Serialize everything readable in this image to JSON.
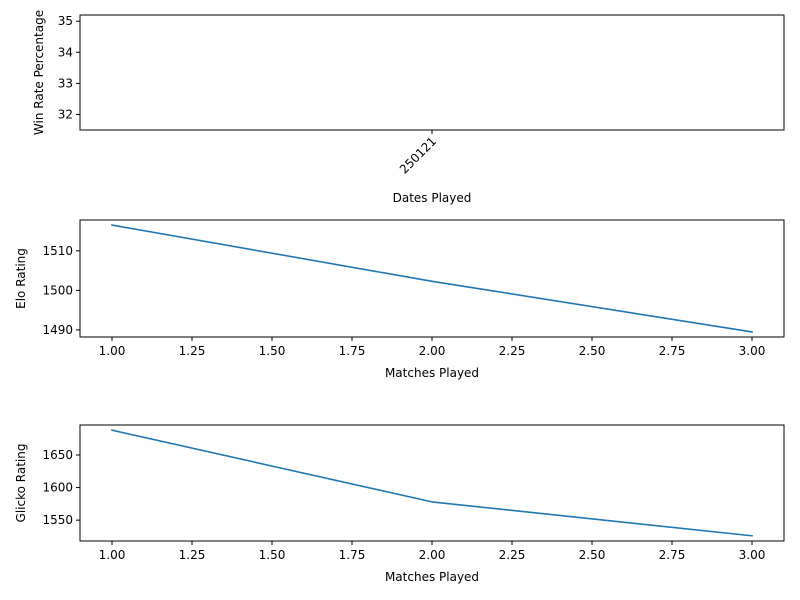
{
  "chart_data": [
    {
      "type": "line",
      "xlabel": "Dates Played",
      "ylabel": "Win Rate Percentage",
      "x_categories": [
        "250121"
      ],
      "series": [],
      "ylim": [
        31.5,
        35.2
      ],
      "yticks": [
        32,
        33,
        34,
        35
      ],
      "x_tick_rotation_deg": 45,
      "grid": false
    },
    {
      "type": "line",
      "xlabel": "Matches Played",
      "ylabel": "Elo Rating",
      "series": [
        {
          "x": [
            1,
            2,
            3
          ],
          "y": [
            1516.5,
            1502.3,
            1489.5
          ],
          "color": "#1f77b4"
        }
      ],
      "xlim": [
        0.9,
        3.1
      ],
      "ylim": [
        1488.2,
        1517.8
      ],
      "xticks": [
        "1.00",
        "1.25",
        "1.50",
        "1.75",
        "2.00",
        "2.25",
        "2.50",
        "2.75",
        "3.00"
      ],
      "yticks": [
        1490,
        1500,
        1510
      ],
      "grid": false
    },
    {
      "type": "line",
      "xlabel": "Matches Played",
      "ylabel": "Glicko Rating",
      "series": [
        {
          "x": [
            1,
            2,
            3
          ],
          "y": [
            1688,
            1578,
            1526
          ],
          "color": "#1f77b4"
        }
      ],
      "xlim": [
        0.9,
        3.1
      ],
      "ylim": [
        1518,
        1696
      ],
      "xticks": [
        "1.00",
        "1.25",
        "1.50",
        "1.75",
        "2.00",
        "2.25",
        "2.50",
        "2.75",
        "3.00"
      ],
      "yticks": [
        1550,
        1600,
        1650
      ],
      "grid": false
    }
  ]
}
